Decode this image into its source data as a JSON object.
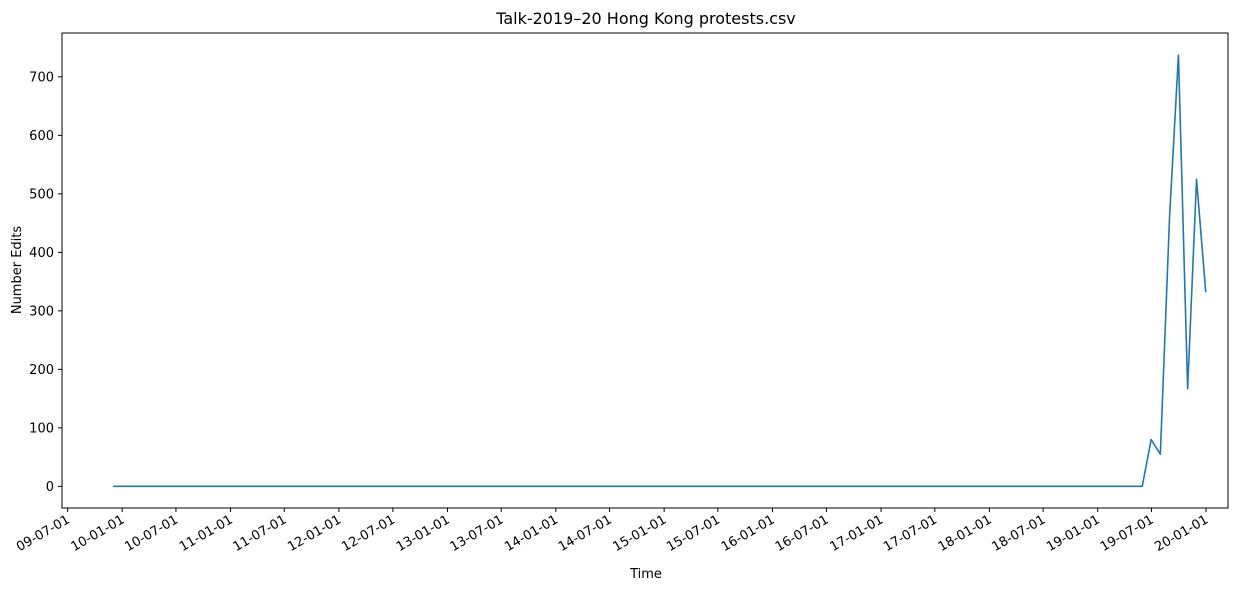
{
  "chart_data": {
    "type": "line",
    "title": "Talk-2019–20 Hong Kong protests.csv",
    "xlabel": "Time",
    "ylabel": "Number Edits",
    "x_type": "date",
    "xlim": [
      "2009-06-12",
      "2020-03-15"
    ],
    "ylim": [
      -37,
      775
    ],
    "grid": false,
    "color": "#1f77b4",
    "x_ticks": [
      "2009-07-01",
      "2010-01-01",
      "2010-07-01",
      "2011-01-01",
      "2011-07-01",
      "2012-01-01",
      "2012-07-01",
      "2013-01-01",
      "2013-07-01",
      "2014-01-01",
      "2014-07-01",
      "2015-01-01",
      "2015-07-01",
      "2016-01-01",
      "2016-07-01",
      "2017-01-01",
      "2017-07-01",
      "2018-01-01",
      "2018-07-01",
      "2019-01-01",
      "2019-07-01",
      "2020-01-01"
    ],
    "x_tick_labels": [
      "09-07-01",
      "10-01-01",
      "10-07-01",
      "11-01-01",
      "11-07-01",
      "12-01-01",
      "12-07-01",
      "13-01-01",
      "13-07-01",
      "14-01-01",
      "14-07-01",
      "15-01-01",
      "15-07-01",
      "16-01-01",
      "16-07-01",
      "17-01-01",
      "17-07-01",
      "18-01-01",
      "18-07-01",
      "19-01-01",
      "19-07-01",
      "20-01-01"
    ],
    "y_ticks": [
      0,
      100,
      200,
      300,
      400,
      500,
      600,
      700
    ],
    "y_tick_labels": [
      "0",
      "100",
      "200",
      "300",
      "400",
      "500",
      "600",
      "700"
    ],
    "series": [
      {
        "x": [
          "2009-12-01",
          "2019-05-31",
          "2019-06-30",
          "2019-07-31",
          "2019-08-31",
          "2019-09-30",
          "2019-10-31",
          "2019-11-30",
          "2019-12-31"
        ],
        "y": [
          0,
          0,
          80,
          55,
          460,
          737,
          167,
          525,
          332
        ]
      }
    ]
  }
}
